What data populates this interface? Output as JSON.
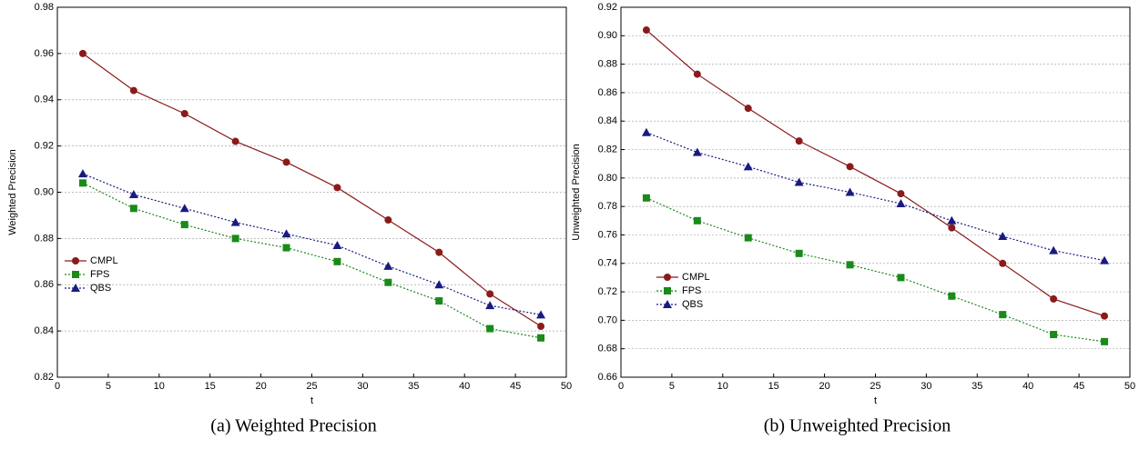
{
  "chart_data": [
    {
      "type": "line",
      "caption": "(a) Weighted Precision",
      "x_label": "t",
      "y_label": "Weighted Precision",
      "x": [
        2.5,
        7.5,
        12.5,
        17.5,
        22.5,
        27.5,
        32.5,
        37.5,
        42.5,
        47.5
      ],
      "series": [
        {
          "name": "CMPL",
          "color": "#8b1a1a",
          "marker": "circle",
          "dash": "solid",
          "values": [
            0.96,
            0.944,
            0.934,
            0.922,
            0.913,
            0.902,
            0.888,
            0.874,
            0.856,
            0.842
          ]
        },
        {
          "name": "FPS",
          "color": "#1a8a1a",
          "marker": "square",
          "dash": "dotted",
          "values": [
            0.904,
            0.893,
            0.886,
            0.88,
            0.876,
            0.87,
            0.861,
            0.853,
            0.841,
            0.837
          ]
        },
        {
          "name": "QBS",
          "color": "#1a1a80",
          "marker": "triangle",
          "dash": "dotted",
          "values": [
            0.908,
            0.899,
            0.893,
            0.887,
            0.882,
            0.877,
            0.868,
            0.86,
            0.851,
            0.847
          ]
        }
      ],
      "xlim": [
        0,
        50
      ],
      "xticks": [
        0,
        5,
        10,
        15,
        20,
        25,
        30,
        35,
        40,
        45,
        50
      ],
      "ylim": [
        0.82,
        0.98
      ],
      "yticks": [
        0.82,
        0.84,
        0.86,
        0.88,
        {
          "value": 0.9,
          "label": "0.90"
        },
        0.92,
        0.94,
        0.96,
        0.98
      ],
      "grid": true,
      "legend": "center-left"
    },
    {
      "type": "line",
      "caption": "(b) Unweighted Precision",
      "x_label": "t",
      "y_label": "Unweighted Precision",
      "x": [
        2.5,
        7.5,
        12.5,
        17.5,
        22.5,
        27.5,
        32.5,
        37.5,
        42.5,
        47.5
      ],
      "series": [
        {
          "name": "CMPL",
          "color": "#8b1a1a",
          "marker": "circle",
          "dash": "solid",
          "values": [
            0.904,
            0.873,
            0.849,
            0.826,
            0.808,
            0.789,
            0.765,
            0.74,
            0.715,
            0.703
          ]
        },
        {
          "name": "FPS",
          "color": "#1a8a1a",
          "marker": "square",
          "dash": "dotted",
          "values": [
            0.786,
            0.77,
            0.758,
            0.747,
            0.739,
            0.73,
            0.717,
            0.704,
            0.69,
            0.685
          ]
        },
        {
          "name": "QBS",
          "color": "#1a1a80",
          "marker": "triangle",
          "dash": "dotted",
          "values": [
            0.832,
            0.818,
            0.808,
            0.797,
            0.79,
            0.782,
            0.77,
            0.759,
            0.749,
            0.742
          ]
        }
      ],
      "xlim": [
        0,
        50
      ],
      "xticks": [
        0,
        5,
        10,
        15,
        20,
        25,
        30,
        35,
        40,
        45,
        50
      ],
      "ylim": [
        0.66,
        0.92
      ],
      "yticks": [
        0.66,
        0.68,
        {
          "value": 0.7,
          "label": "0.70"
        },
        0.72,
        0.74,
        0.76,
        0.78,
        {
          "value": 0.8,
          "label": "0.80"
        },
        0.82,
        0.84,
        0.86,
        0.88,
        {
          "value": 0.9,
          "label": "0.90"
        },
        0.92
      ],
      "grid": true,
      "legend": "center-left"
    }
  ]
}
